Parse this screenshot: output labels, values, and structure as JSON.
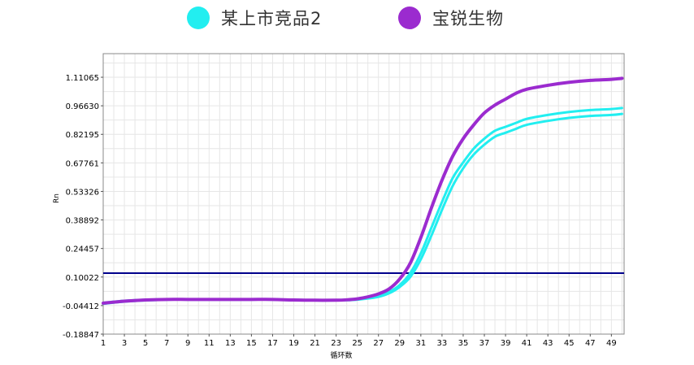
{
  "legend": [
    {
      "label": "某上市竞品2",
      "color": "#22EEF0"
    },
    {
      "label": "宝锐生物",
      "color": "#9B2BCF"
    }
  ],
  "chart_data": {
    "type": "line",
    "title": "",
    "xlabel": "循环数",
    "ylabel": "Rn",
    "xlim": [
      1,
      50
    ],
    "ylim": [
      -0.18847,
      1.23
    ],
    "x_ticks": [
      1,
      3,
      5,
      7,
      9,
      11,
      13,
      15,
      17,
      19,
      21,
      23,
      25,
      27,
      29,
      31,
      33,
      35,
      37,
      39,
      41,
      43,
      45,
      47,
      49
    ],
    "y_ticks": [
      -0.18847,
      -0.04412,
      0.10022,
      0.24457,
      0.38892,
      0.53326,
      0.67761,
      0.82195,
      0.9663,
      1.11065
    ],
    "y_tick_labels": [
      "-0.18847",
      "-0.04412",
      "0.10022",
      "0.24457",
      "0.38892",
      "0.53326",
      "0.67761",
      "0.82195",
      "0.96630",
      "1.11065"
    ],
    "threshold": 0.12,
    "threshold_color": "#00008B",
    "grid": true,
    "legend_position": "top",
    "series": [
      {
        "name": "某上市竞品2",
        "color": "#22EEF0",
        "x": [
          1,
          3,
          5,
          7,
          9,
          11,
          13,
          15,
          17,
          19,
          21,
          23,
          24,
          25,
          26,
          27,
          28,
          29,
          30,
          31,
          32,
          33,
          34,
          35,
          36,
          37,
          38,
          39,
          40,
          41,
          43,
          45,
          47,
          49,
          50
        ],
        "y": [
          -0.03,
          -0.02,
          -0.015,
          -0.012,
          -0.012,
          -0.012,
          -0.012,
          -0.012,
          -0.012,
          -0.015,
          -0.016,
          -0.016,
          -0.015,
          -0.012,
          -0.005,
          0.005,
          0.025,
          0.06,
          0.12,
          0.22,
          0.35,
          0.48,
          0.6,
          0.68,
          0.75,
          0.8,
          0.84,
          0.86,
          0.88,
          0.9,
          0.92,
          0.935,
          0.945,
          0.95,
          0.955
        ]
      },
      {
        "name": "某上市竞品2",
        "color": "#22EEF0",
        "x": [
          1,
          3,
          5,
          7,
          9,
          11,
          13,
          15,
          17,
          19,
          21,
          23,
          24,
          25,
          26,
          27,
          28,
          29,
          30,
          31,
          32,
          33,
          34,
          35,
          36,
          37,
          38,
          39,
          40,
          41,
          43,
          45,
          47,
          49,
          50
        ],
        "y": [
          -0.035,
          -0.024,
          -0.018,
          -0.014,
          -0.014,
          -0.014,
          -0.014,
          -0.014,
          -0.014,
          -0.017,
          -0.018,
          -0.018,
          -0.017,
          -0.014,
          -0.008,
          0.0,
          0.018,
          0.05,
          0.1,
          0.19,
          0.31,
          0.44,
          0.56,
          0.65,
          0.72,
          0.77,
          0.81,
          0.83,
          0.85,
          0.87,
          0.89,
          0.905,
          0.915,
          0.92,
          0.925
        ]
      },
      {
        "name": "宝锐生物",
        "color": "#9B2BCF",
        "x": [
          1,
          3,
          5,
          7,
          9,
          11,
          13,
          15,
          17,
          19,
          21,
          23,
          24,
          25,
          26,
          27,
          28,
          29,
          30,
          31,
          32,
          33,
          34,
          35,
          36,
          37,
          38,
          39,
          40,
          41,
          43,
          45,
          47,
          49,
          50
        ],
        "y": [
          -0.032,
          -0.022,
          -0.016,
          -0.013,
          -0.013,
          -0.013,
          -0.013,
          -0.013,
          -0.013,
          -0.016,
          -0.017,
          -0.017,
          -0.015,
          -0.01,
          0.0,
          0.015,
          0.04,
          0.09,
          0.17,
          0.3,
          0.45,
          0.59,
          0.71,
          0.8,
          0.87,
          0.93,
          0.97,
          1.0,
          1.03,
          1.05,
          1.07,
          1.085,
          1.095,
          1.1,
          1.105
        ]
      }
    ]
  }
}
